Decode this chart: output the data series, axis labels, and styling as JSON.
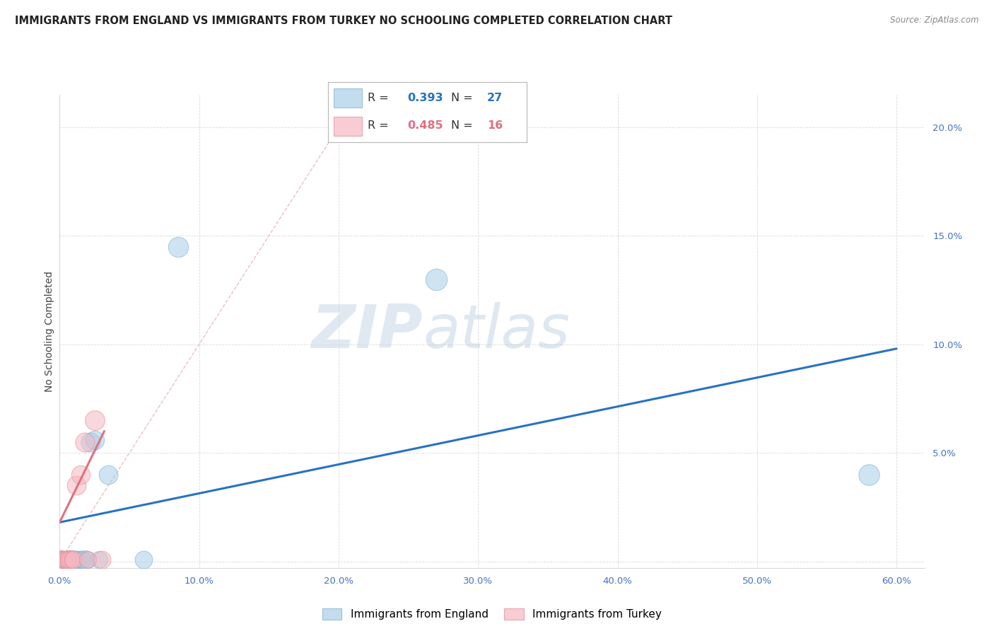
{
  "title": "IMMIGRANTS FROM ENGLAND VS IMMIGRANTS FROM TURKEY NO SCHOOLING COMPLETED CORRELATION CHART",
  "source": "Source: ZipAtlas.com",
  "ylabel": "No Schooling Completed",
  "xlim": [
    0.0,
    0.62
  ],
  "ylim": [
    -0.003,
    0.215
  ],
  "xticks": [
    0.0,
    0.1,
    0.2,
    0.3,
    0.4,
    0.5,
    0.6
  ],
  "yticks": [
    0.0,
    0.05,
    0.1,
    0.15,
    0.2
  ],
  "xtick_labels": [
    "0.0%",
    "10.0%",
    "20.0%",
    "30.0%",
    "40.0%",
    "50.0%",
    "60.0%"
  ],
  "ytick_labels": [
    "",
    "5.0%",
    "10.0%",
    "15.0%",
    "20.0%"
  ],
  "england_R": "0.393",
  "england_N": "27",
  "turkey_R": "0.485",
  "turkey_N": "16",
  "england_color": "#a8cfe8",
  "turkey_color": "#f4b8c1",
  "england_scatter": [
    [
      0.001,
      0.001
    ],
    [
      0.002,
      0.001
    ],
    [
      0.003,
      0.001
    ],
    [
      0.004,
      0.001
    ],
    [
      0.005,
      0.001
    ],
    [
      0.006,
      0.001
    ],
    [
      0.007,
      0.001
    ],
    [
      0.008,
      0.001
    ],
    [
      0.009,
      0.001
    ],
    [
      0.01,
      0.001
    ],
    [
      0.011,
      0.001
    ],
    [
      0.012,
      0.001
    ],
    [
      0.013,
      0.001
    ],
    [
      0.014,
      0.001
    ],
    [
      0.015,
      0.001
    ],
    [
      0.016,
      0.001
    ],
    [
      0.017,
      0.001
    ],
    [
      0.018,
      0.001
    ],
    [
      0.02,
      0.001
    ],
    [
      0.022,
      0.055
    ],
    [
      0.025,
      0.056
    ],
    [
      0.035,
      0.04
    ],
    [
      0.06,
      0.001
    ],
    [
      0.085,
      0.145
    ],
    [
      0.27,
      0.13
    ],
    [
      0.58,
      0.04
    ],
    [
      0.028,
      0.001
    ]
  ],
  "turkey_scatter": [
    [
      0.001,
      0.001
    ],
    [
      0.002,
      0.001
    ],
    [
      0.003,
      0.001
    ],
    [
      0.004,
      0.001
    ],
    [
      0.005,
      0.001
    ],
    [
      0.006,
      0.001
    ],
    [
      0.007,
      0.001
    ],
    [
      0.008,
      0.001
    ],
    [
      0.009,
      0.001
    ],
    [
      0.01,
      0.001
    ],
    [
      0.012,
      0.035
    ],
    [
      0.015,
      0.04
    ],
    [
      0.018,
      0.055
    ],
    [
      0.02,
      0.001
    ],
    [
      0.025,
      0.065
    ],
    [
      0.03,
      0.001
    ]
  ],
  "england_line_x": [
    0.0,
    0.6
  ],
  "england_line_y": [
    0.018,
    0.098
  ],
  "turkey_line_x": [
    0.0,
    0.032
  ],
  "turkey_line_y": [
    0.018,
    0.06
  ],
  "diag_line_x": [
    0.0,
    0.215
  ],
  "diag_line_y": [
    0.0,
    0.215
  ],
  "watermark_zip": "ZIP",
  "watermark_atlas": "atlas",
  "background_color": "#ffffff",
  "grid_color": "#d9d9d9",
  "title_fontsize": 10.5,
  "label_fontsize": 10,
  "tick_fontsize": 9.5,
  "legend_fontsize": 11
}
